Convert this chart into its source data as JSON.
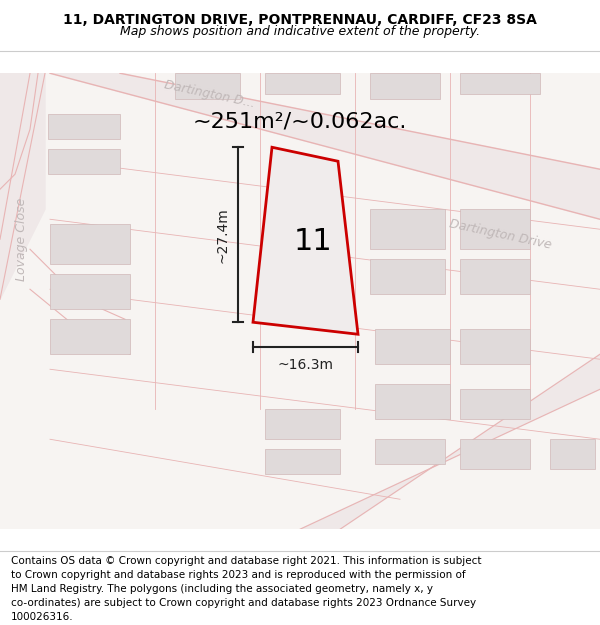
{
  "title_line1": "11, DARTINGTON DRIVE, PONTPRENNAU, CARDIFF, CF23 8SA",
  "title_line2": "Map shows position and indicative extent of the property.",
  "area_text": "~251m²/~0.062ac.",
  "property_number": "11",
  "width_label": "~16.3m",
  "height_label": "~27.4m",
  "footer_lines": [
    "Contains OS data © Crown copyright and database right 2021. This information is subject",
    "to Crown copyright and database rights 2023 and is reproduced with the permission of",
    "HM Land Registry. The polygons (including the associated geometry, namely x, y",
    "co-ordinates) are subject to Crown copyright and database rights 2023 Ordnance Survey",
    "100026316."
  ],
  "map_bg": "#f7f4f2",
  "road_line_color": "#e8b4b4",
  "road_fill_color": "#efe8e8",
  "plot_outline_color": "#ddc8c8",
  "building_fill": "#e0dada",
  "building_edge": "#d0b8b8",
  "prop_fill": "#f0ecec",
  "prop_edge": "#cc0000",
  "street_label_color": "#c0b8b8",
  "dim_color": "#222222",
  "title_fontsize": 10,
  "subtitle_fontsize": 9,
  "area_fontsize": 16,
  "number_fontsize": 22,
  "dim_label_fontsize": 10,
  "footer_fontsize": 7.5,
  "street_fontsize": 9
}
